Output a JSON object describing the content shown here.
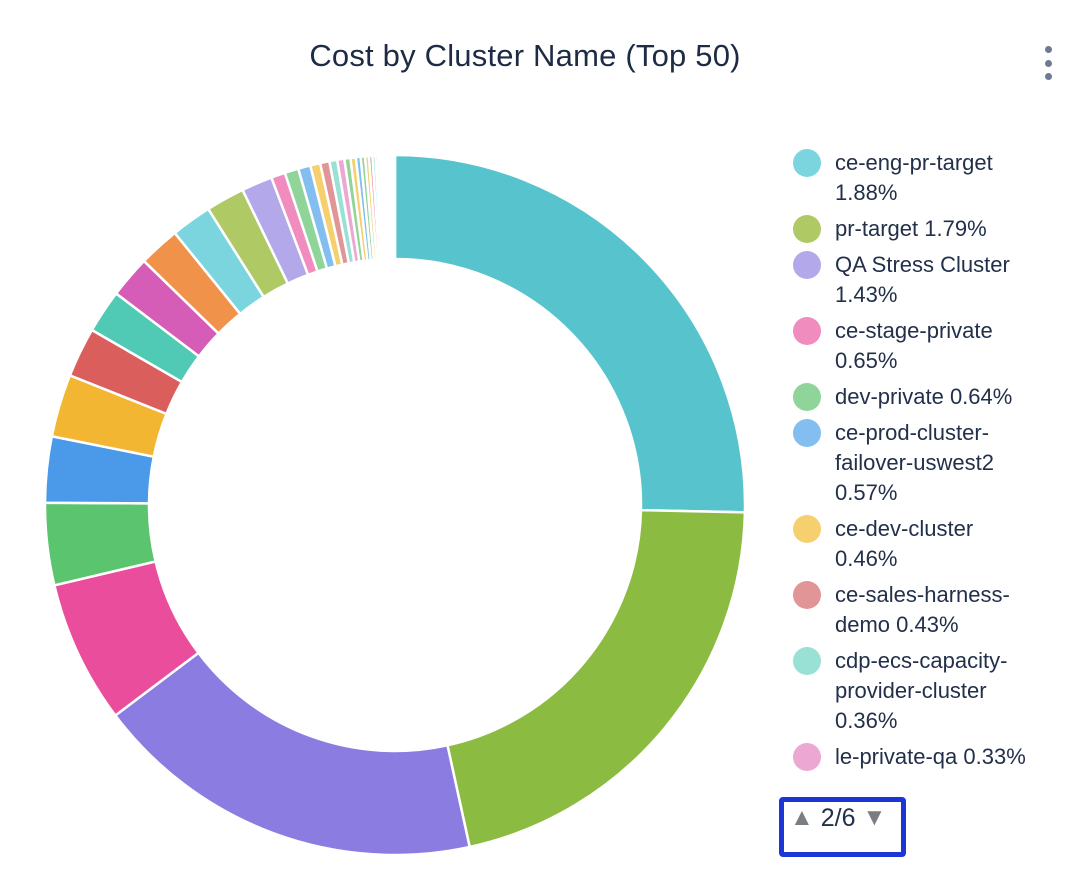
{
  "title": "Cost by Cluster Name (Top 50)",
  "icons": {
    "menu": "kebab-vertical-dots",
    "page_up_glyph": "▲",
    "page_down_glyph": "▼"
  },
  "annotation": {
    "type": "highlight-box",
    "color": "#1b35d6"
  },
  "legend": {
    "page_indicator": "2/6",
    "current_page": "2",
    "total_pages": "6",
    "items": [
      {
        "name": "ce-eng-pr-target",
        "pct": "1.88%",
        "color": "#7bd5de"
      },
      {
        "name": "pr-target",
        "pct": "1.79%",
        "color": "#afc965"
      },
      {
        "name": "QA Stress Cluster",
        "pct": "1.43%",
        "color": "#b3a8ea"
      },
      {
        "name": "ce-stage-private",
        "pct": "0.65%",
        "color": "#f08cbe"
      },
      {
        "name": "dev-private",
        "pct": "0.64%",
        "color": "#8fd59a"
      },
      {
        "name": "ce-prod-cluster-failover-uswest2",
        "pct": "0.57%",
        "color": "#82bff0"
      },
      {
        "name": "ce-dev-cluster",
        "pct": "0.46%",
        "color": "#f6d06e"
      },
      {
        "name": "ce-sales-harness-demo",
        "pct": "0.43%",
        "color": "#e29597"
      },
      {
        "name": "cdp-ecs-capacity-provider-cluster",
        "pct": "0.36%",
        "color": "#99e0d5"
      },
      {
        "name": "le-private-qa",
        "pct": "0.33%",
        "color": "#eda7d3"
      }
    ]
  },
  "chart_data": {
    "type": "pie",
    "subtype": "donut",
    "title": "Cost by Cluster Name (Top 50)",
    "unit": "%",
    "legend_position": "right",
    "start_angle_deg": 0,
    "clockwise": true,
    "inner_radius_ratio": 0.7,
    "note": "Legend shows page 2 of 6; labels of other slices are not visible in the screenshot. Unlabeled slice values estimated from arc angles.",
    "segments": [
      {
        "label": "",
        "value": 25.4,
        "color": "#57c3cd"
      },
      {
        "label": "",
        "value": 21.3,
        "color": "#8cbb42"
      },
      {
        "label": "",
        "value": 18.2,
        "color": "#8a7ce0"
      },
      {
        "label": "",
        "value": 6.6,
        "color": "#ea4d9c"
      },
      {
        "label": "",
        "value": 3.8,
        "color": "#5bc46e"
      },
      {
        "label": "",
        "value": 3.05,
        "color": "#4a9ae9"
      },
      {
        "label": "",
        "value": 2.9,
        "color": "#f2b632"
      },
      {
        "label": "",
        "value": 2.3,
        "color": "#da5f5c"
      },
      {
        "label": "",
        "value": 2.0,
        "color": "#50c9b5"
      },
      {
        "label": "",
        "value": 1.95,
        "color": "#d55cb7"
      },
      {
        "label": "",
        "value": 1.9,
        "color": "#f0924a"
      },
      {
        "label": "ce-eng-pr-target",
        "value": 1.88,
        "color": "#7bd5de"
      },
      {
        "label": "pr-target",
        "value": 1.79,
        "color": "#afc965"
      },
      {
        "label": "QA Stress Cluster",
        "value": 1.43,
        "color": "#b3a8ea"
      },
      {
        "label": "ce-stage-private",
        "value": 0.65,
        "color": "#f08cbe"
      },
      {
        "label": "dev-private",
        "value": 0.64,
        "color": "#8fd59a"
      },
      {
        "label": "ce-prod-cluster-failover-uswest2",
        "value": 0.57,
        "color": "#82bff0"
      },
      {
        "label": "ce-dev-cluster",
        "value": 0.46,
        "color": "#f6d06e"
      },
      {
        "label": "ce-sales-harness-demo",
        "value": 0.43,
        "color": "#e29597"
      },
      {
        "label": "cdp-ecs-capacity-provider-cluster",
        "value": 0.36,
        "color": "#99e0d5"
      },
      {
        "label": "le-private-qa",
        "value": 0.33,
        "color": "#eda7d3"
      },
      {
        "label": "",
        "value": 0.28,
        "color": "#8fd59a"
      },
      {
        "label": "",
        "value": 0.25,
        "color": "#f6d06e"
      },
      {
        "label": "",
        "value": 0.22,
        "color": "#82bff0"
      },
      {
        "label": "",
        "value": 0.2,
        "color": "#8fd59a"
      },
      {
        "label": "",
        "value": 0.18,
        "color": "#f6d06e"
      },
      {
        "label": "",
        "value": 0.16,
        "color": "#e29597"
      },
      {
        "label": "",
        "value": 0.14,
        "color": "#7dd8dd"
      },
      {
        "label": "",
        "value": 0.12,
        "color": "#e06bb2"
      },
      {
        "label": "",
        "value": 0.1,
        "color": "#eda7d3"
      },
      {
        "label": "",
        "value": 0.09,
        "color": "#50c9b5"
      },
      {
        "label": "",
        "value": 0.08,
        "color": "#d55cb7"
      },
      {
        "label": "",
        "value": 0.07,
        "color": "#2e6f6b"
      },
      {
        "label": "",
        "value": 0.06,
        "color": "#3c7d46"
      },
      {
        "label": "",
        "value": 0.05,
        "color": "#b3a8ea"
      },
      {
        "label": "",
        "value": 0.05,
        "color": "#6b4fa0"
      },
      {
        "label": "",
        "value": 0.04,
        "color": "#4a9ae9"
      },
      {
        "label": "",
        "value": 0.04,
        "color": "#f2b632"
      },
      {
        "label": "",
        "value": 0.03,
        "color": "#da5f5c"
      },
      {
        "label": "",
        "value": 0.03,
        "color": "#57c3cd"
      },
      {
        "label": "",
        "value": 0.02,
        "color": "#8cbb42"
      },
      {
        "label": "",
        "value": 0.02,
        "color": "#b3a8ea"
      },
      {
        "label": "",
        "value": 0.02,
        "color": "#f08cbe"
      },
      {
        "label": "",
        "value": 0.01,
        "color": "#f0924a"
      },
      {
        "label": "",
        "value": 0.01,
        "color": "#99e0d5"
      },
      {
        "label": "",
        "value": 0.01,
        "color": "#5bc46e"
      },
      {
        "label": "",
        "value": 0.01,
        "color": "#ea4d9c"
      },
      {
        "label": "",
        "value": 0.01,
        "color": "#d55cb7"
      },
      {
        "label": "",
        "value": 0.01,
        "color": "#7dd8dd"
      },
      {
        "label": "",
        "value": 0.01,
        "color": "#afc965"
      }
    ]
  }
}
